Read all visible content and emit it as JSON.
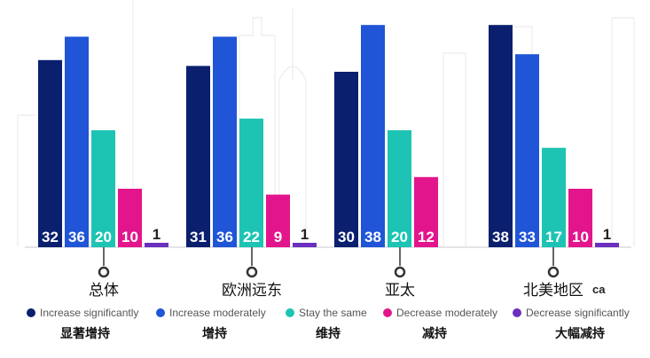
{
  "chart_data": {
    "type": "bar",
    "categories": [
      "总体",
      "欧洲远东",
      "亚太",
      "北美地区"
    ],
    "category_extra_text": [
      "",
      "",
      "",
      "ca"
    ],
    "series": [
      {
        "name": "Increase significantly",
        "name_zh": "显著增持",
        "color": "#0a1f6e",
        "values": [
          32,
          31,
          30,
          38
        ]
      },
      {
        "name": "Increase moderately",
        "name_zh": "增持",
        "color": "#1f55d6",
        "values": [
          36,
          36,
          38,
          33
        ]
      },
      {
        "name": "Stay the same",
        "name_zh": "维持",
        "color": "#1dc4b3",
        "values": [
          20,
          22,
          20,
          17
        ]
      },
      {
        "name": "Decrease moderately",
        "name_zh": "减持",
        "color": "#e3158c",
        "values": [
          10,
          9,
          12,
          10
        ]
      },
      {
        "name": "Decrease significantly",
        "name_zh": "大幅减持",
        "color": "#6b2fbf",
        "values": [
          1,
          1,
          null,
          1
        ]
      }
    ],
    "title": "",
    "xlabel": "",
    "ylabel": "",
    "ylim": [
      0,
      40
    ],
    "grid": false,
    "legend_position": "bottom"
  }
}
